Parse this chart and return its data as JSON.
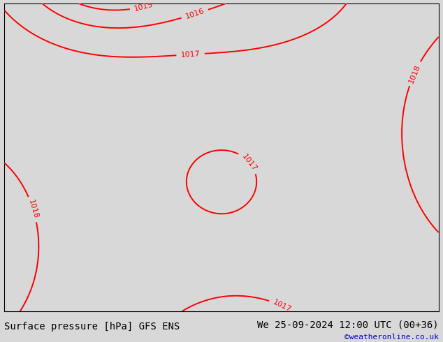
{
  "title_left": "Surface pressure [hPa] GFS ENS",
  "title_right": "We 25-09-2024 12:00 UTC (00+36)",
  "credit": "©weatheronline.co.uk",
  "credit_color": "#0000cc",
  "background_color": "#d8d8d8",
  "land_color": "#c8f0a0",
  "sea_color": "#d8d8d8",
  "contour_color": "#ff0000",
  "contour_linewidth": 1.4,
  "contour_label_fontsize": 8,
  "border_color": "#888888",
  "border_linewidth": 0.6,
  "text_fontsize": 10,
  "figsize": [
    6.34,
    4.9
  ],
  "dpi": 100,
  "lon_min": 19.0,
  "lon_max": 32.0,
  "lat_min": 33.5,
  "lat_max": 43.0
}
